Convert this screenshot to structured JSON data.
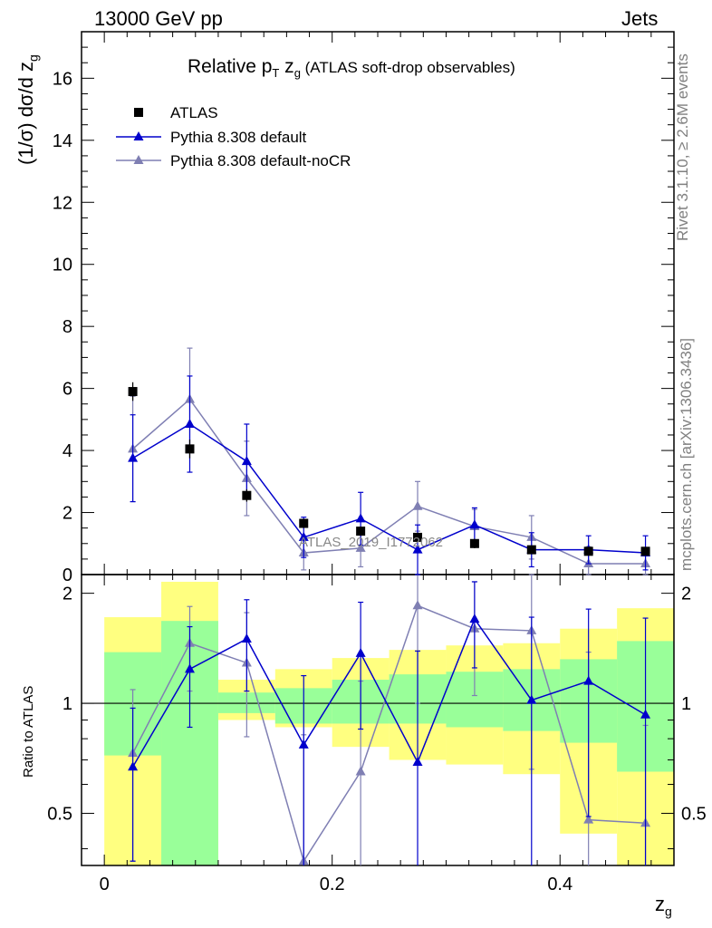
{
  "header": {
    "left": "13000 GeV pp",
    "right": "Jets"
  },
  "plot_title": {
    "main": "Relative p",
    "sub_T": "T",
    "main2": " z",
    "sub_g": "g",
    "paren": " (ATLAS soft-drop observables)"
  },
  "ylabel_top": {
    "text": "(1/σ) dσ/d z",
    "sub": "g"
  },
  "ylabel_bottom": "Ratio to ATLAS",
  "xlabel": {
    "text": "z",
    "sub": "g"
  },
  "watermark": "ATLAS_2019_I1772062",
  "side_text": {
    "rivet": "Rivet 3.1.10, ≥ 2.6M events",
    "mcplots": "mcplots.cern.ch [arXiv:1306.3436]"
  },
  "colors": {
    "data": "#000000",
    "pythia_default": "#0000cc",
    "pythia_nocr": "#7f7fb3",
    "band_inner": "#99ff99",
    "band_outer": "#ffff80"
  },
  "chart_data": {
    "type": "line",
    "xlim": [
      -0.02,
      0.5
    ],
    "ylim_main": [
      0,
      17.5
    ],
    "ylim_ratio": [
      0.36,
      2.25
    ],
    "x_ticks": [
      "0",
      "0.2",
      "0.4"
    ],
    "y_ticks_main": [
      "0",
      "2",
      "4",
      "6",
      "8",
      "10",
      "12",
      "14",
      "16"
    ],
    "y_ticks_ratio": [
      "0.5",
      "1",
      "2"
    ],
    "bin_edges": [
      0,
      0.05,
      0.1,
      0.15,
      0.2,
      0.25,
      0.3,
      0.35,
      0.4,
      0.45,
      0.5
    ],
    "x": [
      0.025,
      0.075,
      0.125,
      0.175,
      0.225,
      0.275,
      0.325,
      0.375,
      0.425,
      0.475
    ],
    "series": [
      {
        "name": "ATLAS",
        "values": [
          5.9,
          4.05,
          2.55,
          1.65,
          1.4,
          1.2,
          1.0,
          0.8,
          0.75,
          0.75
        ],
        "errors": [
          0.3,
          0.3,
          0.2,
          0.15,
          0.15,
          0.15,
          0.15,
          0.1,
          0.1,
          0.1
        ]
      },
      {
        "name": "Pythia 8.308 default",
        "values": [
          3.75,
          4.85,
          3.65,
          1.2,
          1.8,
          0.8,
          1.6,
          0.8,
          0.8,
          0.7
        ],
        "errors": [
          1.4,
          1.55,
          1.2,
          0.65,
          0.85,
          0.8,
          0.55,
          0.55,
          0.45,
          0.55
        ],
        "ratio": [
          0.67,
          1.24,
          1.5,
          0.77,
          1.37,
          0.69,
          1.7,
          1.02,
          1.15,
          0.93
        ],
        "ratio_errors": [
          0.3,
          0.38,
          0.42,
          0.42,
          0.52,
          0.7,
          0.45,
          0.7,
          0.66,
          0.78
        ]
      },
      {
        "name": "Pythia 8.308 default-noCR",
        "values": [
          4.05,
          5.65,
          3.1,
          0.7,
          0.85,
          2.2,
          1.55,
          1.2,
          0.35,
          0.35
        ],
        "errors": [
          1.7,
          1.65,
          1.2,
          0.55,
          0.6,
          0.8,
          0.55,
          0.7,
          0.55,
          0.4
        ],
        "ratio": [
          0.73,
          1.46,
          1.29,
          0.37,
          0.65,
          1.85,
          1.6,
          1.58,
          0.48,
          0.47
        ],
        "ratio_errors": [
          0.36,
          0.38,
          0.48,
          0.45,
          0.5,
          0.85,
          0.55,
          0.92,
          0.9,
          0.4
        ]
      }
    ],
    "band_inner": [
      [
        0.72,
        1.38
      ],
      [
        0.36,
        1.68
      ],
      [
        0.94,
        1.07
      ],
      [
        0.88,
        1.1
      ],
      [
        0.88,
        1.16
      ],
      [
        0.88,
        1.2
      ],
      [
        0.86,
        1.22
      ],
      [
        0.84,
        1.24
      ],
      [
        0.78,
        1.32
      ],
      [
        0.65,
        1.48
      ]
    ],
    "band_outer": [
      [
        0.36,
        1.72
      ],
      [
        0.36,
        2.15
      ],
      [
        0.9,
        1.16
      ],
      [
        0.86,
        1.24
      ],
      [
        0.76,
        1.33
      ],
      [
        0.7,
        1.4
      ],
      [
        0.68,
        1.44
      ],
      [
        0.64,
        1.46
      ],
      [
        0.44,
        1.6
      ],
      [
        0.36,
        1.82
      ]
    ]
  }
}
